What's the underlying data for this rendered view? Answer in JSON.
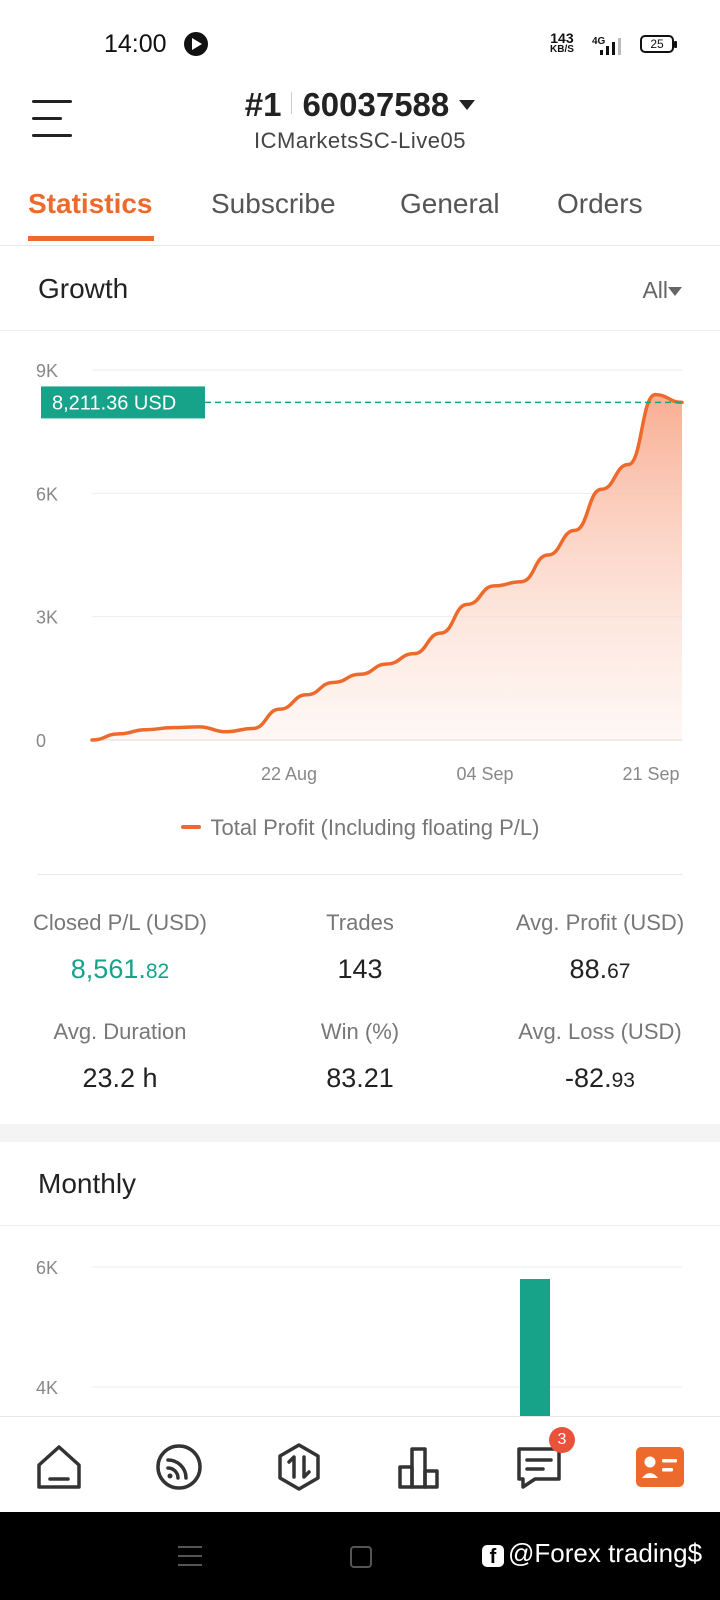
{
  "status_bar": {
    "time": "14:00",
    "speed_value": "143",
    "speed_unit": "KB/S",
    "network": "4G",
    "battery": "25"
  },
  "header": {
    "rank": "#1",
    "account_number": "60037588",
    "server": "ICMarketsSC-Live05"
  },
  "tabs": [
    {
      "label": "Statistics",
      "active": true
    },
    {
      "label": "Subscribe",
      "active": false
    },
    {
      "label": "General",
      "active": false
    },
    {
      "label": "Orders",
      "active": false
    }
  ],
  "growth": {
    "title": "Growth",
    "range": "All",
    "current_value_label": "8,211.36 USD",
    "legend": "Total Profit (Including floating P/L)"
  },
  "stats": {
    "closed_pl_label": "Closed P/L (USD)",
    "closed_pl_int": "8,561.",
    "closed_pl_dec": "82",
    "trades_label": "Trades",
    "trades_value": "143",
    "avg_profit_label": "Avg. Profit (USD)",
    "avg_profit_int": "88.",
    "avg_profit_dec": "67",
    "avg_duration_label": "Avg. Duration",
    "avg_duration_value": "23.2 h",
    "win_label": "Win (%)",
    "win_value": "83.21",
    "avg_loss_label": "Avg. Loss (USD)",
    "avg_loss_int": "-82.",
    "avg_loss_dec": "93"
  },
  "monthly": {
    "title": "Monthly"
  },
  "bottom_nav": {
    "chat_badge": "3",
    "items": [
      "home-icon",
      "signals-icon",
      "trade-icon",
      "chart-icon",
      "chat-icon",
      "profile-icon"
    ]
  },
  "watermark": "@Forex trading$",
  "colors": {
    "accent": "#ee6a2c",
    "green": "#16a389",
    "fill": "#f9b9a2"
  },
  "chart_data": [
    {
      "type": "area",
      "title": "",
      "xlabel": "",
      "ylabel": "",
      "x_ticks": [
        "22 Aug",
        "04 Sep",
        "21 Sep"
      ],
      "y_ticks": [
        "0",
        "3K",
        "6K",
        "9K"
      ],
      "ylim": [
        0,
        9000
      ],
      "grid": true,
      "series": [
        {
          "name": "Total Profit (Including floating P/L)",
          "values": [
            0,
            150,
            250,
            300,
            320,
            200,
            280,
            750,
            1100,
            1400,
            1600,
            1850,
            2100,
            2600,
            3300,
            3750,
            3850,
            4500,
            5100,
            6100,
            6700,
            8400,
            8211.36
          ]
        }
      ],
      "last_value_label": "8,211.36 USD",
      "legend_position": "bottom"
    },
    {
      "type": "bar",
      "title": "",
      "y_ticks": [
        "4K",
        "6K"
      ],
      "grid": true,
      "series": [
        {
          "values": [
            5800
          ]
        }
      ]
    }
  ]
}
